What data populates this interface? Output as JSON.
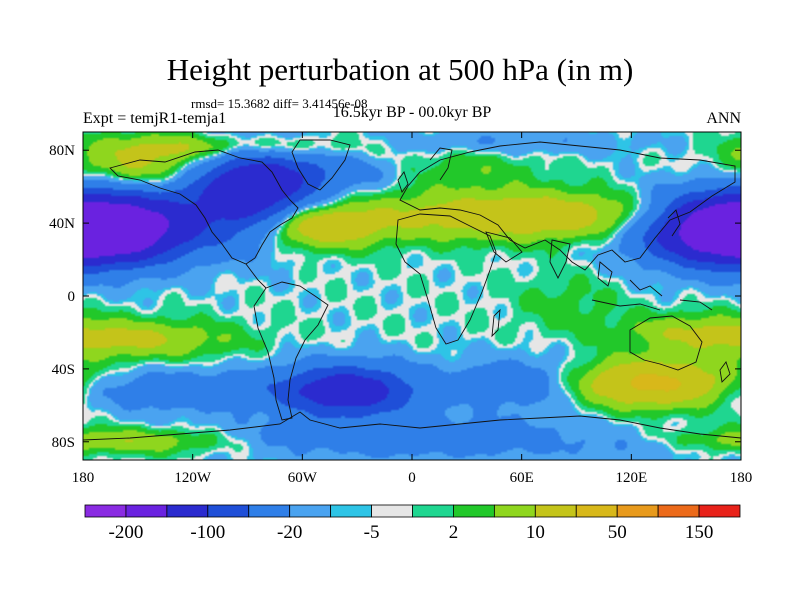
{
  "title": "Height perturbation at 500 hPa (in m)",
  "subtitle": "rmsd= 15.3682 diff= 3.41456e-08",
  "left_label": "Expt = temjR1-temja1",
  "center_label": "16.5kyr BP - 00.0kyr BP",
  "right_label": "ANN",
  "x_ticks": [
    "180",
    "120W",
    "60W",
    "0",
    "60E",
    "120E",
    "180"
  ],
  "y_ticks": [
    "80N",
    "40N",
    "0",
    "40S",
    "80S"
  ],
  "colorbar": {
    "colors": [
      "#8a2be2",
      "#6a22e0",
      "#2b2bcf",
      "#1f4fd8",
      "#2f7fe8",
      "#4aa3f0",
      "#2ec4e6",
      "#e6e6e6",
      "#1fd690",
      "#22c82a",
      "#8fd61e",
      "#c4c41a",
      "#d8b81a",
      "#e89a1c",
      "#ec6a1a",
      "#e8221a"
    ],
    "labels": [
      "-200",
      "-100",
      "-20",
      "-5",
      "2",
      "10",
      "50",
      "150"
    ]
  },
  "field_levels": {
    "neutral": "#e6e6e6",
    "pos": [
      "#1fd690",
      "#22c82a",
      "#8fd61e",
      "#c4c41a",
      "#d8b81a",
      "#e89a1c"
    ],
    "neg": [
      "#2ec4e6",
      "#4aa3f0",
      "#2f7fe8",
      "#1f4fd8",
      "#2b2bcf",
      "#6a22e0"
    ]
  },
  "blobs": [
    {
      "lon": -172,
      "lat": 37,
      "a": -170,
      "sx": 34,
      "sy": 13
    },
    {
      "lon": 178,
      "lat": 37,
      "a": -170,
      "sx": 34,
      "sy": 13
    },
    {
      "lon": -88,
      "lat": 58,
      "a": -155,
      "sx": 25,
      "sy": 17
    },
    {
      "lon": -40,
      "lat": 68,
      "a": -35,
      "sx": 24,
      "sy": 7
    },
    {
      "lon": -145,
      "lat": 72,
      "a": 60,
      "sx": 27,
      "sy": 9
    },
    {
      "lon": -95,
      "lat": 82,
      "a": 55,
      "sx": 45,
      "sy": 5
    },
    {
      "lon": -52,
      "lat": 38,
      "a": 95,
      "sx": 22,
      "sy": 8
    },
    {
      "lon": 40,
      "lat": 84,
      "a": -22,
      "sx": 60,
      "sy": 5
    },
    {
      "lon": 30,
      "lat": 70,
      "a": 20,
      "sx": 30,
      "sy": 9
    },
    {
      "lon": 65,
      "lat": 44,
      "a": 85,
      "sx": 65,
      "sy": 9
    },
    {
      "lon": -150,
      "lat": -24,
      "a": 55,
      "sx": 35,
      "sy": 7
    },
    {
      "lon": 155,
      "lat": -20,
      "a": 45,
      "sx": 28,
      "sy": 7
    },
    {
      "lon": 85,
      "lat": -5,
      "a": 16,
      "sx": 20,
      "sy": 12
    },
    {
      "lon": -130,
      "lat": -52,
      "a": -45,
      "sx": 45,
      "sy": 8
    },
    {
      "lon": -35,
      "lat": -52,
      "a": -140,
      "sx": 26,
      "sy": 10
    },
    {
      "lon": 130,
      "lat": -48,
      "a": 120,
      "sx": 32,
      "sy": 9
    },
    {
      "lon": 65,
      "lat": -48,
      "a": -50,
      "sx": 30,
      "sy": 10
    },
    {
      "lon": 0,
      "lat": -78,
      "a": -40,
      "sx": 75,
      "sy": 8
    },
    {
      "lon": -160,
      "lat": -80,
      "a": 55,
      "sx": 40,
      "sy": 5
    },
    {
      "lon": 150,
      "lat": -84,
      "a": -15,
      "sx": 45,
      "sy": 5
    }
  ]
}
